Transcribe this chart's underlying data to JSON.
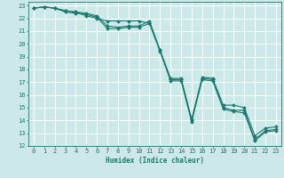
{
  "xlabel": "Humidex (Indice chaleur)",
  "xlim": [
    -0.5,
    23.5
  ],
  "ylim": [
    12,
    23.3
  ],
  "xticks": [
    0,
    1,
    2,
    3,
    4,
    5,
    6,
    7,
    8,
    9,
    10,
    11,
    12,
    13,
    14,
    15,
    16,
    17,
    18,
    19,
    20,
    21,
    22,
    23
  ],
  "yticks": [
    12,
    13,
    14,
    15,
    16,
    17,
    18,
    19,
    20,
    21,
    22,
    23
  ],
  "bg_color": "#cce8e8",
  "grid_color": "#ffffff",
  "line_color": "#1a7a6e",
  "series": [
    {
      "x": [
        0,
        1,
        2,
        3,
        4,
        5,
        6,
        7,
        8,
        9,
        10,
        11,
        12,
        13,
        14,
        15,
        16,
        17,
        18,
        19,
        20,
        21,
        22,
        23
      ],
      "y": [
        22.8,
        22.9,
        22.8,
        22.6,
        22.5,
        22.2,
        22.0,
        21.8,
        21.8,
        21.8,
        21.8,
        21.6,
        19.5,
        17.2,
        17.2,
        14.0,
        17.3,
        17.2,
        15.0,
        14.8,
        14.8,
        12.5,
        13.2,
        13.3
      ]
    },
    {
      "x": [
        0,
        1,
        2,
        3,
        4,
        5,
        6,
        7,
        8,
        9,
        10,
        11,
        12,
        13,
        14,
        15,
        16,
        17,
        18,
        19,
        20,
        21,
        22,
        23
      ],
      "y": [
        22.8,
        22.9,
        22.8,
        22.6,
        22.5,
        22.4,
        22.2,
        21.4,
        21.3,
        21.4,
        21.4,
        21.8,
        19.5,
        17.3,
        17.3,
        14.1,
        17.4,
        17.3,
        15.2,
        15.2,
        15.0,
        12.8,
        13.4,
        13.5
      ]
    },
    {
      "x": [
        0,
        1,
        2,
        3,
        4,
        5,
        6,
        7,
        8,
        9,
        10,
        11,
        12,
        13,
        14,
        15,
        16,
        17,
        18,
        19,
        20,
        21,
        22,
        23
      ],
      "y": [
        22.8,
        22.9,
        22.8,
        22.5,
        22.4,
        22.3,
        22.1,
        21.2,
        21.2,
        21.3,
        21.3,
        21.6,
        19.4,
        17.1,
        17.1,
        13.9,
        17.2,
        17.1,
        14.9,
        14.7,
        14.6,
        12.4,
        13.1,
        13.2
      ]
    }
  ]
}
